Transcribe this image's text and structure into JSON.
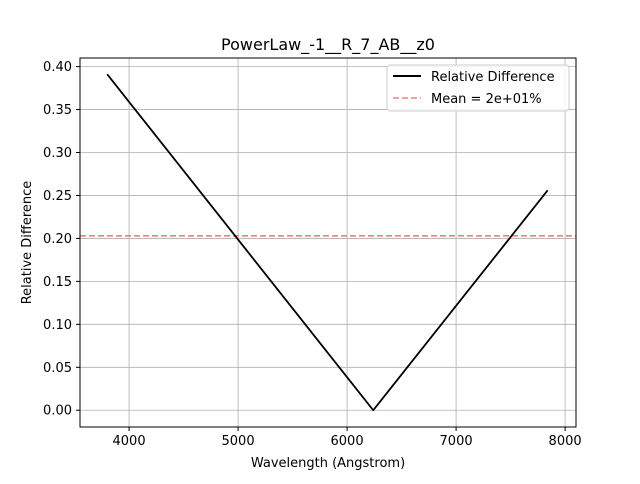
{
  "chart_data": {
    "type": "line",
    "title": "PowerLaw_-1__R_7_AB__z0",
    "xlabel": "Wavelength (Angstrom)",
    "ylabel": "Relative Difference",
    "xlim": [
      3550,
      8100
    ],
    "ylim": [
      -0.0195,
      0.41
    ],
    "xticks": [
      4000,
      5000,
      6000,
      7000,
      8000
    ],
    "yticks": [
      0.0,
      0.05,
      0.1,
      0.15,
      0.2,
      0.25,
      0.3,
      0.35,
      0.4
    ],
    "xtick_labels": [
      "4000",
      "5000",
      "6000",
      "7000",
      "8000"
    ],
    "ytick_labels": [
      "0.00",
      "0.05",
      "0.10",
      "0.15",
      "0.20",
      "0.25",
      "0.30",
      "0.35",
      "0.40"
    ],
    "grid": true,
    "legend_position": "top-right",
    "series": [
      {
        "name": "Relative Difference",
        "color": "#000000",
        "style": "solid",
        "x": [
          3800,
          6240,
          7840
        ],
        "y": [
          0.391,
          0.0,
          0.256
        ]
      }
    ],
    "hlines": [
      {
        "name": "Mean = 2e+01%",
        "color": "#f08080",
        "style": "dashed",
        "y": 0.203
      }
    ]
  }
}
